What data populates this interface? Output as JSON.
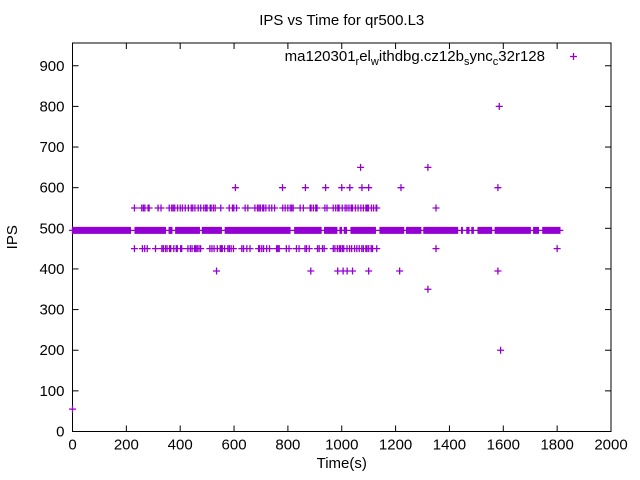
{
  "window": {
    "background": "#ffffff",
    "border_color": "#000000",
    "text_color": "#000000"
  },
  "chart_data": {
    "type": "scatter",
    "title": "IPS vs Time for qr500.L3",
    "xlabel": "Time(s)",
    "ylabel": "IPS",
    "xlim": [
      0,
      2000
    ],
    "ylim": [
      0,
      956
    ],
    "x_ticks": [
      0,
      200,
      400,
      600,
      800,
      1000,
      1200,
      1400,
      1600,
      1800,
      2000
    ],
    "y_ticks": [
      0,
      100,
      200,
      300,
      400,
      500,
      600,
      700,
      800,
      900
    ],
    "grid": false,
    "tick_style": "inward-mirrored",
    "legend_position": "top-right-inside",
    "series": [
      {
        "name": "ma120301_rel_withdbg.cz12b_sync_c32r128",
        "name_segments": [
          {
            "text": "ma120301",
            "sub": false
          },
          {
            "text": "r",
            "sub": true
          },
          {
            "text": "el",
            "sub": false
          },
          {
            "text": "w",
            "sub": true
          },
          {
            "text": "ithdbg.cz12b",
            "sub": false
          },
          {
            "text": "s",
            "sub": true
          },
          {
            "text": "ync",
            "sub": false
          },
          {
            "text": "c",
            "sub": true
          },
          {
            "text": "32r128",
            "sub": false
          }
        ],
        "marker": "plus",
        "color": "#9400D3",
        "bands": [
          {
            "y": 495,
            "x_start": 0,
            "x_end": 1810,
            "density": "continuous",
            "seed": 11
          },
          {
            "y": 550,
            "x_start": 230,
            "x_end": 1130,
            "density": "dotted",
            "seed": 23
          },
          {
            "y": 450,
            "x_start": 230,
            "x_end": 1130,
            "density": "dotted",
            "seed": 47
          }
        ],
        "outliers": [
          [
            0,
            55
          ],
          [
            535,
            395
          ],
          [
            885,
            395
          ],
          [
            985,
            395
          ],
          [
            1005,
            395
          ],
          [
            1020,
            395
          ],
          [
            1040,
            395
          ],
          [
            1100,
            395
          ],
          [
            1215,
            395
          ],
          [
            1580,
            395
          ],
          [
            605,
            600
          ],
          [
            780,
            600
          ],
          [
            865,
            600
          ],
          [
            940,
            600
          ],
          [
            1000,
            600
          ],
          [
            1030,
            600
          ],
          [
            1075,
            600
          ],
          [
            1100,
            600
          ],
          [
            1220,
            600
          ],
          [
            1580,
            600
          ],
          [
            1070,
            650
          ],
          [
            1320,
            650
          ],
          [
            1350,
            550
          ],
          [
            1320,
            350
          ],
          [
            1350,
            450
          ],
          [
            1800,
            450
          ],
          [
            1585,
            800
          ],
          [
            1590,
            200
          ]
        ]
      }
    ]
  }
}
